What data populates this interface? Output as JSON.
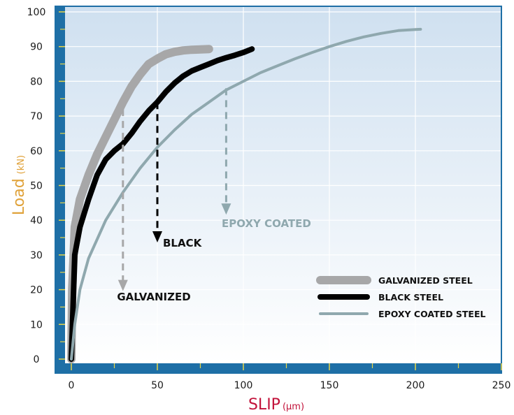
{
  "chart_data": {
    "type": "line",
    "title": "",
    "xlabel": "SLIP",
    "xunit": "(µm)",
    "ylabel": "Load",
    "yunit": "(kN)",
    "xlim": [
      -10,
      250
    ],
    "ylim": [
      -2,
      101
    ],
    "xticks": [
      0,
      50,
      100,
      150,
      200,
      250
    ],
    "yticks": [
      0,
      10,
      20,
      30,
      40,
      50,
      60,
      70,
      80,
      90,
      100
    ],
    "grid": true,
    "legend_position": "bottom-right",
    "series": [
      {
        "name": "GALVANIZED STEEL",
        "color": "#a7a7a8",
        "x": [
          0,
          0.5,
          2,
          5,
          10,
          15,
          20,
          25,
          30,
          35,
          40,
          45,
          50,
          55,
          60,
          65,
          70,
          75,
          80
        ],
        "y": [
          0,
          20,
          38,
          46,
          53,
          59,
          64,
          69,
          74,
          78.5,
          82,
          85,
          86.5,
          87.8,
          88.5,
          88.9,
          89.1,
          89.2,
          89.3
        ]
      },
      {
        "name": "BLACK STEEL",
        "color": "#000000",
        "x": [
          0,
          2,
          5,
          10,
          15,
          20,
          25,
          30,
          35,
          40,
          45,
          50,
          55,
          60,
          65,
          70,
          75,
          80,
          85,
          90,
          95,
          100,
          105
        ],
        "y": [
          0,
          30,
          38,
          46,
          53,
          57.5,
          60,
          62,
          65,
          68.5,
          71.5,
          74,
          77,
          79.5,
          81.5,
          83,
          84,
          85,
          86,
          86.8,
          87.5,
          88.3,
          89.3
        ]
      },
      {
        "name": "EPOXY COATED STEEL",
        "color": "#8fa8ae",
        "x": [
          0,
          2,
          5,
          10,
          20,
          30,
          40,
          50,
          60,
          70,
          80,
          90,
          100,
          110,
          120,
          130,
          140,
          150,
          160,
          170,
          180,
          190,
          200,
          203
        ],
        "y": [
          0,
          10,
          20,
          29,
          40,
          48,
          55,
          61,
          66,
          70.5,
          74,
          77.5,
          80,
          82.5,
          84.5,
          86.5,
          88.3,
          90,
          91.5,
          92.8,
          93.8,
          94.6,
          94.9,
          95
        ]
      }
    ],
    "annotations": [
      {
        "text": "GALVANIZED",
        "color": "#111111",
        "arrow_x": 30,
        "arrow_from_y": 72,
        "arrow_to_y": 20,
        "arrow_color": "#a7a7a8"
      },
      {
        "text": "BLACK",
        "color": "#111111",
        "arrow_x": 50,
        "arrow_from_y": 74,
        "arrow_to_y": 34,
        "arrow_color": "#000000"
      },
      {
        "text": "EPOXY COATED",
        "color": "#8fa8ae",
        "arrow_x": 90,
        "arrow_from_y": 78,
        "arrow_to_y": 42,
        "arrow_color": "#8fa8ae"
      }
    ],
    "colors": {
      "frame_band": "#1e6fa6",
      "grid": "#ffffff",
      "plot_top": "#cfe0f0",
      "plot_bottom": "#ffffff",
      "xlabel": "#c2123a",
      "ylabel": "#e0a23a"
    }
  }
}
